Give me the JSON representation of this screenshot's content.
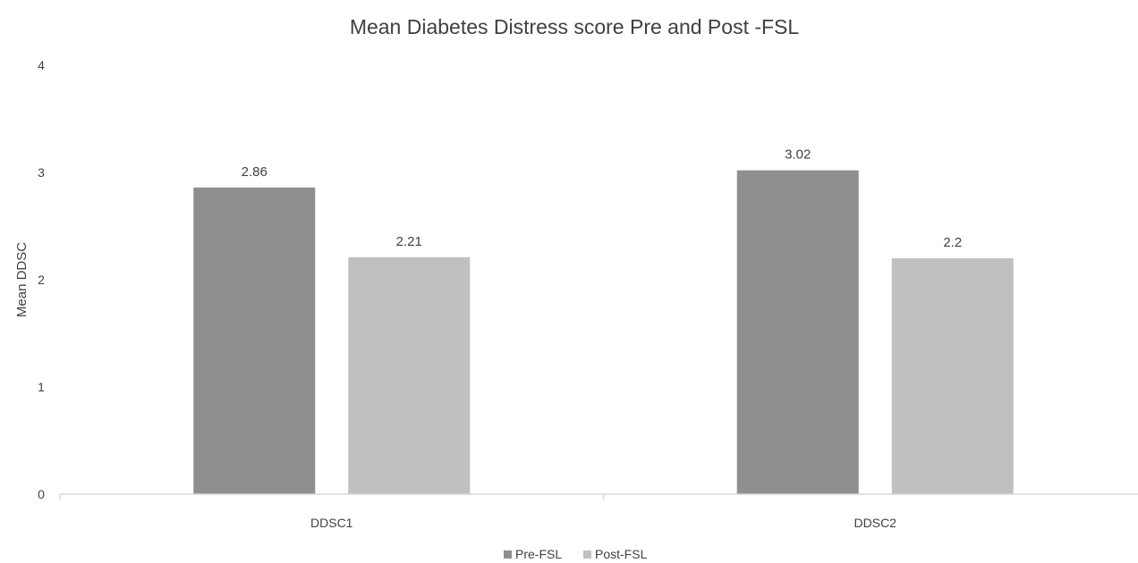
{
  "chart_data": {
    "type": "bar",
    "title": "Mean Diabetes Distress score Pre and Post -FSL",
    "xlabel": "",
    "ylabel": "Mean DDSC",
    "categories": [
      "DDSC1",
      "DDSC2"
    ],
    "series": [
      {
        "name": "Pre-FSL",
        "values": [
          2.86,
          3.02
        ],
        "labels": [
          "2.86",
          "3.02"
        ],
        "color": "#8f8f8f"
      },
      {
        "name": "Post-FSL",
        "values": [
          2.21,
          2.2
        ],
        "labels": [
          "2.21",
          "2.2"
        ],
        "color": "#c0c0c0"
      }
    ],
    "ylim": [
      0,
      4
    ],
    "yticks": [
      "0",
      "1",
      "2",
      "3",
      "4"
    ],
    "grid": false,
    "legend": "bottom",
    "colors": {
      "axis": "#d9d9d9",
      "text": "#404040"
    }
  }
}
